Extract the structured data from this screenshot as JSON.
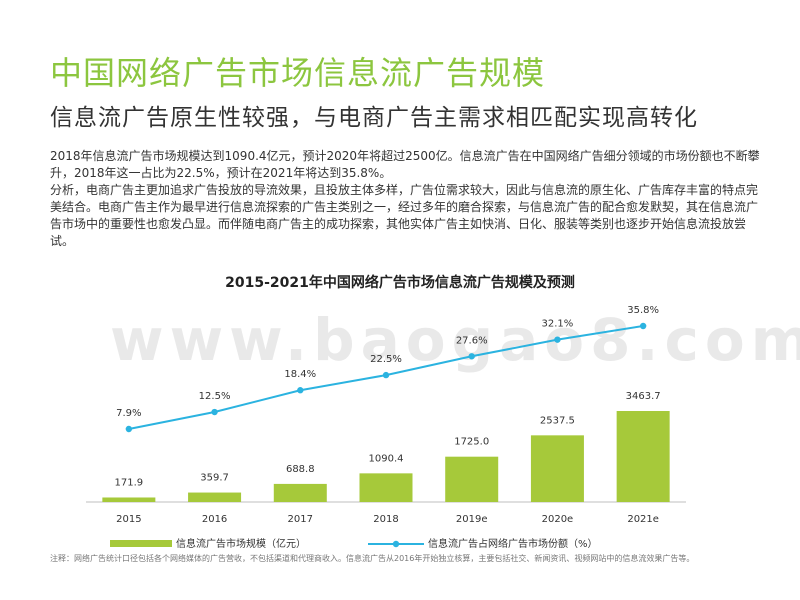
{
  "header": {
    "title": "中国网络广告市场信息流广告规模",
    "subtitle": "信息流广告原生性较强，与电商广告主需求相匹配实现高转化"
  },
  "body": {
    "paragraph1": "2018年信息流广告市场规模达到1090.4亿元，预计2020年将超过2500亿。信息流广告在中国网络广告细分领域的市场份额也不断攀升，2018年这一占比为22.5%，预计在2021年将达到35.8%。",
    "paragraph2": "分析，电商广告主更加追求广告投放的导流效果，且投放主体多样，广告位需求较大，因此与信息流的原生化、广告库存丰富的特点完美结合。电商广告主作为最早进行信息流探索的广告主类别之一，经过多年的磨合探索，与信息流广告的配合愈发默契，其在信息流广告市场中的重要性也愈发凸显。而伴随电商广告主的成功探索，其他实体广告主如快消、日化、服装等类别也逐步开始信息流投放尝试。"
  },
  "watermark": "www.baogao8.com",
  "footnote": "注释：网络广告统计口径包括各个网络媒体的广告营收，不包括渠道和代理商收入。信息流广告从2016年开始独立核算，主要包括社交、新闻资讯、视频网站中的信息流效果广告等。",
  "colors": {
    "bar": "#a6c93a",
    "line": "#2bb3e0",
    "title": "#8cc63f"
  },
  "chart_data": {
    "type": "bar",
    "title": "2015-2021年中国网络广告市场信息流广告规模及预测",
    "categories": [
      "2015",
      "2016",
      "2017",
      "2018",
      "2019e",
      "2020e",
      "2021e"
    ],
    "series": [
      {
        "name": "信息流广告市场规模（亿元）",
        "type": "bar",
        "values": [
          171.9,
          359.7,
          688.8,
          1090.4,
          1725.0,
          2537.5,
          3463.7
        ],
        "labels": [
          "171.9",
          "359.7",
          "688.8",
          "1090.4",
          "1725.0",
          "2537.5",
          "3463.7"
        ]
      },
      {
        "name": "信息流广告占网络广告市场份额（%）",
        "type": "line",
        "values": [
          7.9,
          12.5,
          18.4,
          22.5,
          27.6,
          32.1,
          35.8
        ],
        "labels": [
          "7.9%",
          "12.5%",
          "18.4%",
          "22.5%",
          "27.6%",
          "32.1%",
          "35.8%"
        ]
      }
    ],
    "legend_position": "bottom",
    "grid": false
  }
}
